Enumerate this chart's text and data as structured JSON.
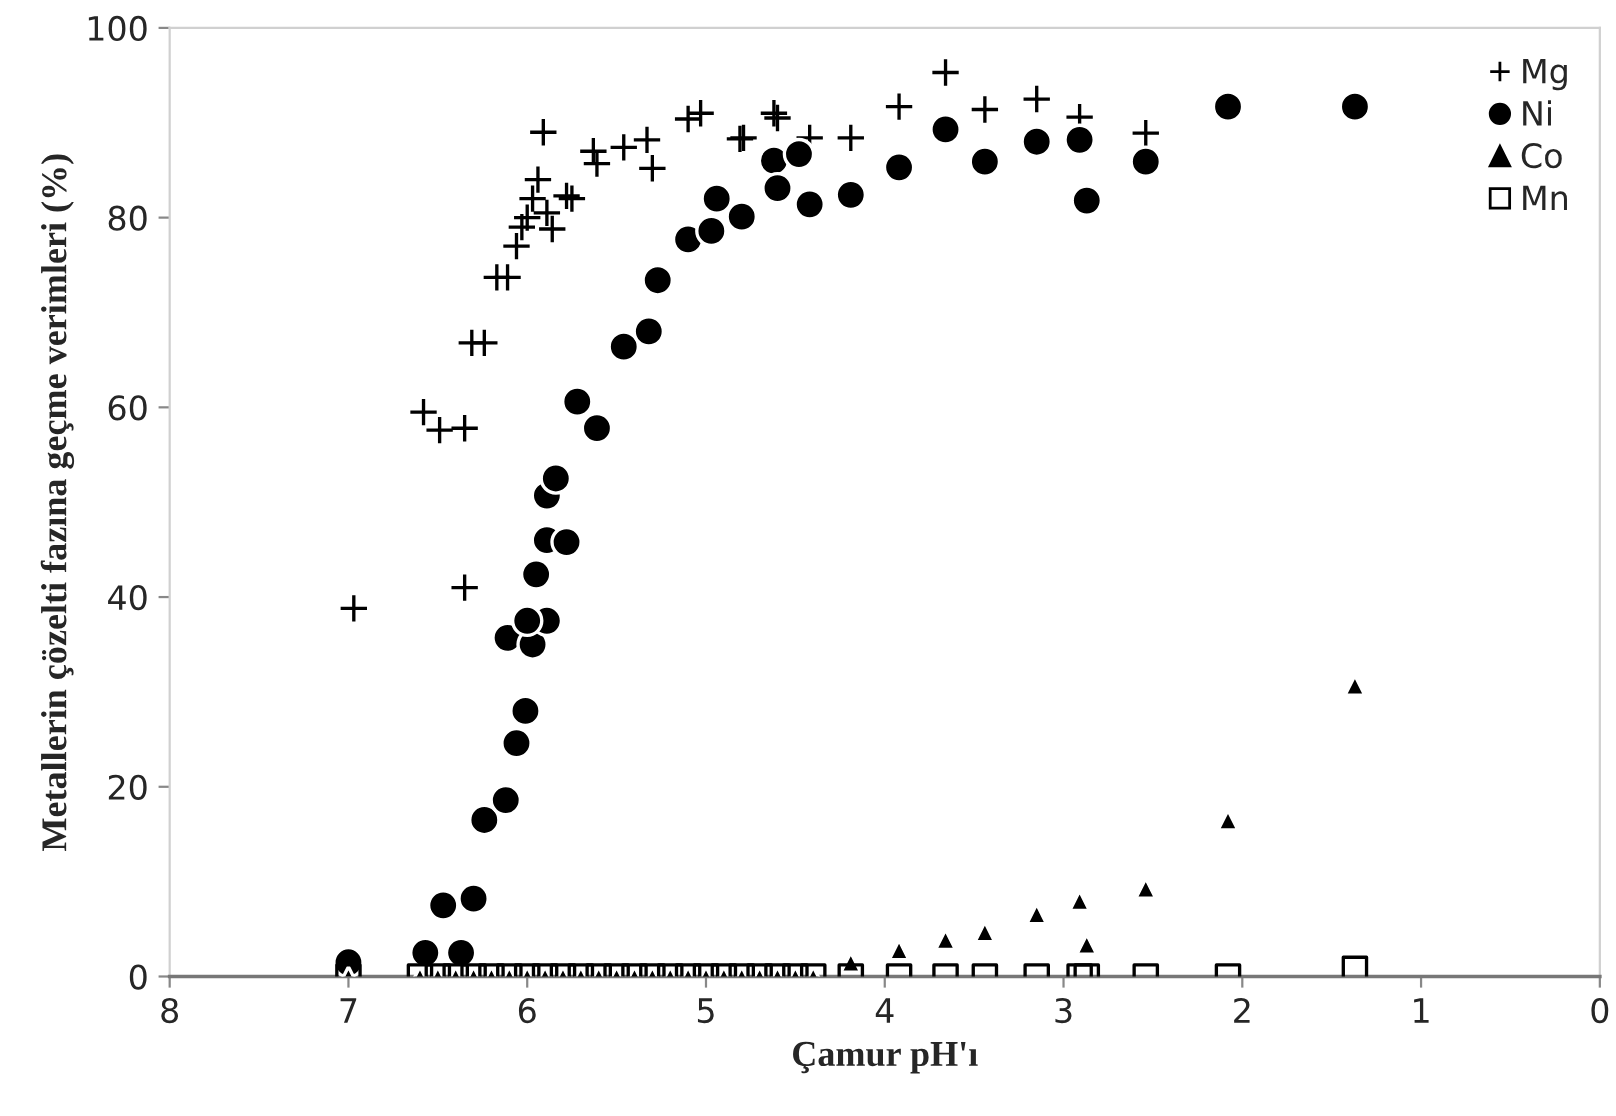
{
  "chart_data": {
    "type": "scatter",
    "xlabel": "Çamur pH'ı",
    "ylabel": "Metallerin çözelti fazına geçme verimleri (%)",
    "xlim": [
      8,
      0
    ],
    "ylim": [
      0,
      100
    ],
    "xticks": [
      8,
      7,
      6,
      5,
      4,
      3,
      2,
      1,
      0
    ],
    "yticks": [
      0,
      20,
      40,
      60,
      80,
      100
    ],
    "grid": false,
    "legend": "top right",
    "series": [
      {
        "name": "Mg",
        "color": "#000000",
        "marker": "cross",
        "x": [
          6.97,
          6.58,
          6.49,
          6.35,
          6.35,
          6.31,
          6.24,
          6.17,
          6.11,
          6.06,
          6.03,
          6.0,
          5.97,
          5.94,
          5.91,
          5.89,
          5.86,
          5.78,
          5.75,
          5.63,
          5.61,
          5.46,
          5.33,
          5.3,
          5.1,
          5.03,
          4.81,
          4.79,
          4.62,
          4.6,
          4.42,
          4.19,
          3.92,
          3.66,
          3.44,
          3.15,
          2.91,
          2.54
        ],
        "values": [
          38.8,
          59.5,
          57.6,
          57.8,
          41,
          66.8,
          66.8,
          73.7,
          73.7,
          77,
          79,
          80,
          82,
          84,
          89,
          80.5,
          78.8,
          82.3,
          82,
          87,
          85.7,
          87.4,
          88.2,
          85.2,
          90.4,
          91,
          88.3,
          88.4,
          91,
          90.5,
          88.4,
          88.4,
          91.7,
          95.3,
          91.4,
          92.5,
          90.6,
          88.9
        ]
      },
      {
        "name": "Ni",
        "color": "#000000",
        "marker": "circle",
        "x": [
          7.0,
          6.57,
          6.37,
          6.47,
          6.3,
          6.24,
          6.12,
          6.06,
          6.01,
          6.11,
          5.97,
          5.89,
          6.0,
          5.95,
          5.89,
          5.78,
          5.89,
          5.84,
          5.72,
          5.61,
          5.46,
          5.32,
          5.27,
          5.1,
          4.97,
          4.94,
          4.8,
          4.62,
          4.6,
          4.48,
          4.42,
          4.19,
          3.92,
          3.66,
          3.44,
          3.15,
          2.91,
          2.87,
          2.54,
          2.08,
          1.37
        ],
        "values": [
          1.5,
          2.5,
          2.5,
          7.5,
          8.2,
          16.5,
          18.6,
          24.6,
          28,
          35.7,
          35,
          37.5,
          37.5,
          42.4,
          46,
          45.8,
          50.7,
          52.5,
          60.6,
          57.8,
          66.4,
          68,
          73.4,
          77.7,
          78.6,
          82,
          80.1,
          86,
          83.1,
          86.7,
          81.4,
          82.4,
          85.3,
          89.3,
          85.9,
          88,
          88.2,
          81.8,
          85.9,
          91.7,
          91.7
        ]
      },
      {
        "name": "Co",
        "color": "#000000",
        "marker": "triangle",
        "x": [
          7.0,
          6.6,
          6.5,
          6.4,
          6.3,
          6.2,
          6.1,
          6.0,
          5.9,
          5.8,
          5.7,
          5.6,
          5.5,
          5.4,
          5.3,
          5.2,
          5.1,
          5.0,
          4.9,
          4.8,
          4.7,
          4.6,
          4.5,
          4.4,
          4.19,
          3.92,
          3.66,
          3.44,
          3.15,
          2.91,
          2.87,
          2.54,
          2.08,
          1.37
        ],
        "values": [
          0,
          0,
          0,
          0,
          0,
          0,
          0,
          0,
          0,
          0,
          0,
          0,
          0,
          0,
          0,
          0,
          0,
          0,
          0,
          0,
          0,
          0,
          0,
          0,
          1.5,
          2.8,
          3.9,
          4.7,
          6.6,
          8,
          3.4,
          9.3,
          16.5,
          30.7
        ]
      },
      {
        "name": "Mn",
        "color": "#000000",
        "marker": "square",
        "x": [
          7.0,
          6.6,
          6.5,
          6.4,
          6.3,
          6.2,
          6.1,
          6.0,
          5.9,
          5.8,
          5.7,
          5.6,
          5.5,
          5.4,
          5.3,
          5.2,
          5.1,
          5.0,
          4.9,
          4.8,
          4.7,
          4.6,
          4.5,
          4.4,
          4.19,
          3.92,
          3.66,
          3.44,
          3.15,
          2.91,
          2.87,
          2.54,
          2.08,
          1.37
        ],
        "values": [
          0,
          0,
          0,
          0,
          0,
          0,
          0,
          0,
          0,
          0,
          0,
          0,
          0,
          0,
          0,
          0,
          0,
          0,
          0,
          0,
          0,
          0,
          0,
          0,
          0,
          0,
          0,
          0,
          0,
          0,
          0,
          0,
          0,
          0.8
        ]
      }
    ]
  }
}
